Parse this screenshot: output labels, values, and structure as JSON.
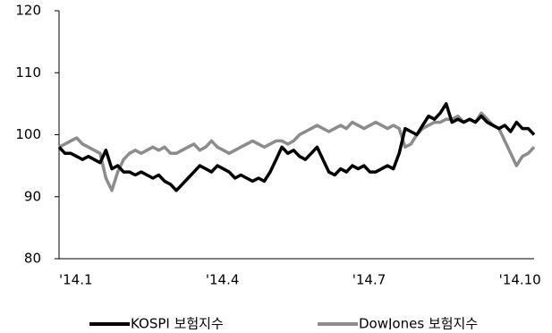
{
  "chart_data": {
    "type": "line",
    "categories": [
      "'14.1",
      null,
      null,
      null,
      null,
      null,
      null,
      null,
      null,
      null,
      null,
      null,
      null,
      null,
      null,
      null,
      null,
      null,
      null,
      null,
      null,
      null,
      null,
      null,
      null,
      "'14.4",
      null,
      null,
      null,
      null,
      null,
      null,
      null,
      null,
      null,
      null,
      null,
      null,
      null,
      null,
      null,
      null,
      null,
      null,
      null,
      null,
      null,
      null,
      null,
      null,
      "'14.7",
      null,
      null,
      null,
      null,
      null,
      null,
      null,
      null,
      null,
      null,
      null,
      null,
      null,
      null,
      null,
      null,
      null,
      null,
      null,
      null,
      null,
      null,
      null,
      null,
      "'14.10",
      null,
      null,
      null,
      null,
      null,
      null
    ],
    "series": [
      {
        "name": "KOSPI 보험지수",
        "color": "#000000",
        "values": [
          98,
          97,
          97,
          96.5,
          96,
          96.5,
          96,
          95.5,
          97.5,
          94.5,
          95,
          94,
          94,
          93.5,
          94,
          93.5,
          93,
          93.5,
          92.5,
          92,
          91,
          92,
          93,
          94,
          95,
          94.5,
          94,
          95,
          94.5,
          94,
          93,
          93.5,
          93,
          92.5,
          93,
          92.5,
          94,
          96,
          98,
          97,
          97.5,
          96.5,
          96,
          97,
          98,
          96,
          94,
          93.5,
          94.5,
          94,
          95,
          94.5,
          95,
          94,
          94,
          94.5,
          95,
          94.5,
          97,
          101,
          100.5,
          100,
          101.5,
          103,
          102.5,
          103.5,
          105,
          102,
          102.5,
          102,
          102.5,
          102,
          103,
          102,
          101.5,
          101,
          101.5,
          100.5,
          102,
          101,
          101,
          100
        ]
      },
      {
        "name": "DowJones 보험지수",
        "color": "#8c8c8c",
        "values": [
          98,
          98.5,
          99,
          99.5,
          98.5,
          98,
          97.5,
          97,
          93,
          91,
          94,
          96,
          97,
          97.5,
          97,
          97.5,
          98,
          97.5,
          98,
          97,
          97,
          97.5,
          98,
          98.5,
          97.5,
          98,
          99,
          98,
          97.5,
          97,
          97.5,
          98,
          98.5,
          99,
          98.5,
          98,
          98.5,
          99,
          99,
          98.5,
          99,
          100,
          100.5,
          101,
          101.5,
          101,
          100.5,
          101,
          101.5,
          101,
          102,
          101.5,
          101,
          101.5,
          102,
          101.5,
          101,
          101.5,
          101,
          98,
          98.5,
          100,
          101,
          101.5,
          102,
          102,
          102.5,
          102.5,
          103,
          102,
          102.5,
          102,
          103.5,
          102.5,
          101.5,
          101,
          99,
          97,
          95,
          96.5,
          97,
          98
        ]
      }
    ],
    "ylim": [
      80,
      120
    ],
    "yticks": [
      80,
      90,
      100,
      110,
      120
    ],
    "grid": false
  }
}
